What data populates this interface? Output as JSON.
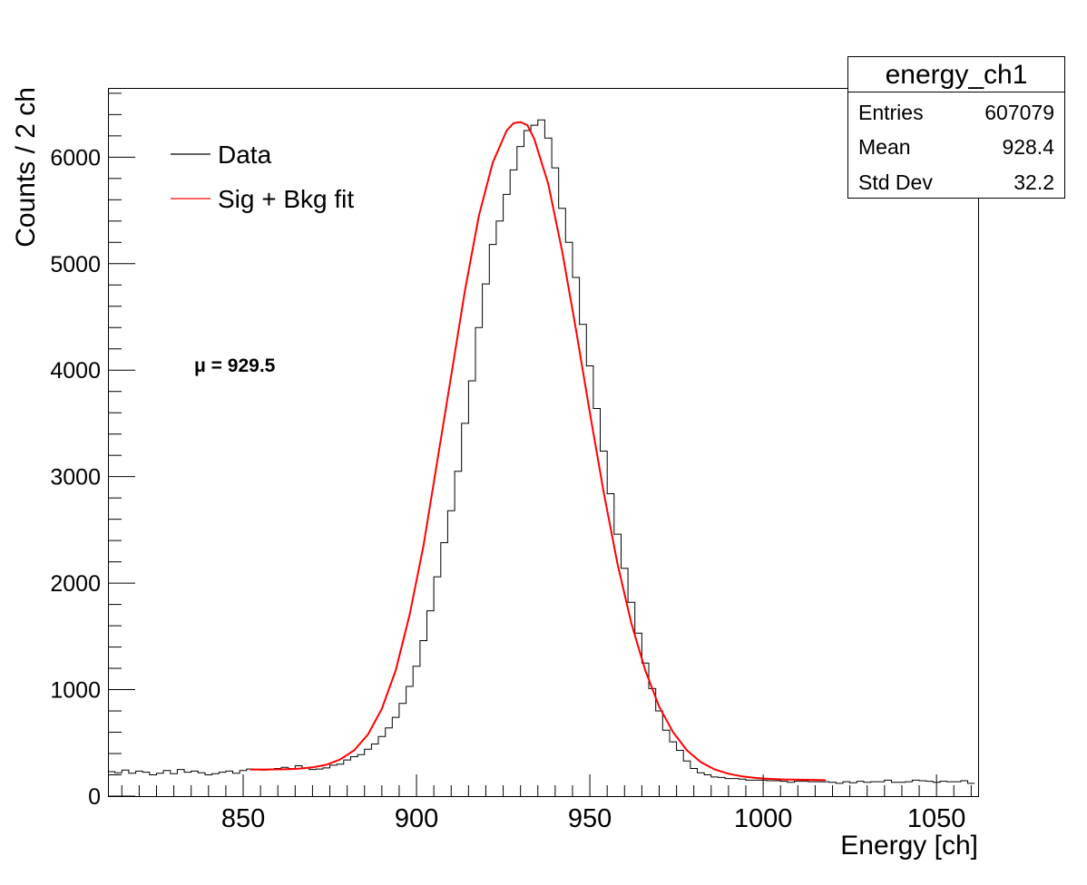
{
  "chart_data": {
    "type": "line",
    "title": "",
    "xlabel": "Energy [ch]",
    "ylabel": "Counts / 2 ch",
    "xlim": [
      811,
      1062
    ],
    "ylim": [
      0,
      6650
    ],
    "bin_width": 2,
    "x_ticks": [
      850,
      900,
      950,
      1000,
      1050
    ],
    "y_ticks": [
      0,
      1000,
      2000,
      3000,
      4000,
      5000,
      6000
    ],
    "legend": {
      "placement": "top-left",
      "entries": [
        {
          "label": "Data",
          "color": "#000000"
        },
        {
          "label": "Sig + Bkg fit",
          "color": "#ff0000"
        }
      ]
    },
    "annotation": "μ = 929.5",
    "stats": {
      "name": "energy_ch1",
      "rows": [
        {
          "label": "Entries",
          "value": "607079"
        },
        {
          "label": "Mean",
          "value": "928.4"
        },
        {
          "label": "Std Dev",
          "value": "32.2"
        }
      ]
    },
    "series": [
      {
        "name": "Data",
        "kind": "histogram",
        "color": "#000000",
        "bin_low": [
          811,
          813,
          815,
          817,
          819,
          821,
          823,
          825,
          827,
          829,
          831,
          833,
          835,
          837,
          839,
          841,
          843,
          845,
          847,
          849,
          851,
          853,
          855,
          857,
          859,
          861,
          863,
          865,
          867,
          869,
          871,
          873,
          875,
          877,
          879,
          881,
          883,
          885,
          887,
          889,
          891,
          893,
          895,
          897,
          899,
          901,
          903,
          905,
          907,
          909,
          911,
          913,
          915,
          917,
          919,
          921,
          923,
          925,
          927,
          929,
          931,
          933,
          935,
          937,
          939,
          941,
          943,
          945,
          947,
          949,
          951,
          953,
          955,
          957,
          959,
          961,
          963,
          965,
          967,
          969,
          971,
          973,
          975,
          977,
          979,
          981,
          983,
          985,
          987,
          989,
          991,
          993,
          995,
          997,
          999,
          1001,
          1003,
          1005,
          1007,
          1009,
          1011,
          1013,
          1015,
          1017,
          1019,
          1021,
          1023,
          1025,
          1027,
          1029,
          1031,
          1033,
          1035,
          1037,
          1039,
          1041,
          1043,
          1045,
          1047,
          1049,
          1051,
          1053,
          1055,
          1057,
          1059
        ],
        "counts": [
          230,
          220,
          245,
          215,
          235,
          225,
          200,
          215,
          240,
          210,
          250,
          225,
          235,
          220,
          200,
          210,
          225,
          235,
          215,
          240,
          255,
          250,
          245,
          255,
          260,
          270,
          260,
          285,
          265,
          250,
          255,
          265,
          290,
          300,
          340,
          370,
          390,
          440,
          490,
          560,
          640,
          740,
          870,
          1030,
          1220,
          1460,
          1740,
          2060,
          2380,
          2680,
          3050,
          3500,
          3900,
          4400,
          4810,
          5180,
          5400,
          5650,
          5880,
          6100,
          6250,
          6300,
          6350,
          6180,
          5900,
          5520,
          5200,
          4870,
          4430,
          4040,
          3640,
          3240,
          2840,
          2460,
          2140,
          1820,
          1530,
          1250,
          1010,
          800,
          620,
          510,
          430,
          330,
          260,
          220,
          200,
          180,
          175,
          165,
          165,
          160,
          150,
          150,
          150,
          145,
          145,
          140,
          130,
          140,
          140,
          135,
          135,
          135,
          130,
          120,
          135,
          125,
          140,
          130,
          135,
          135,
          150,
          130,
          130,
          135,
          150,
          145,
          140,
          130,
          140,
          135,
          135,
          145,
          120
        ]
      },
      {
        "name": "Sig + Bkg fit",
        "kind": "curve",
        "color": "#ff0000",
        "x": [
          852,
          857,
          862,
          866,
          870,
          874,
          878,
          882,
          886,
          890,
          894,
          898,
          902,
          906,
          910,
          914,
          918,
          922,
          926,
          928,
          930,
          932,
          934,
          938,
          942,
          946,
          950,
          954,
          958,
          962,
          966,
          970,
          974,
          978,
          982,
          986,
          990,
          994,
          998,
          1002,
          1006,
          1010,
          1014,
          1018
        ],
        "y": [
          250,
          250,
          252,
          258,
          270,
          295,
          345,
          430,
          580,
          820,
          1180,
          1700,
          2350,
          3150,
          3950,
          4750,
          5450,
          5950,
          6250,
          6320,
          6330,
          6300,
          6170,
          5750,
          5120,
          4380,
          3600,
          2850,
          2180,
          1620,
          1180,
          840,
          600,
          430,
          320,
          250,
          210,
          185,
          170,
          162,
          157,
          154,
          152,
          150
        ]
      }
    ]
  }
}
